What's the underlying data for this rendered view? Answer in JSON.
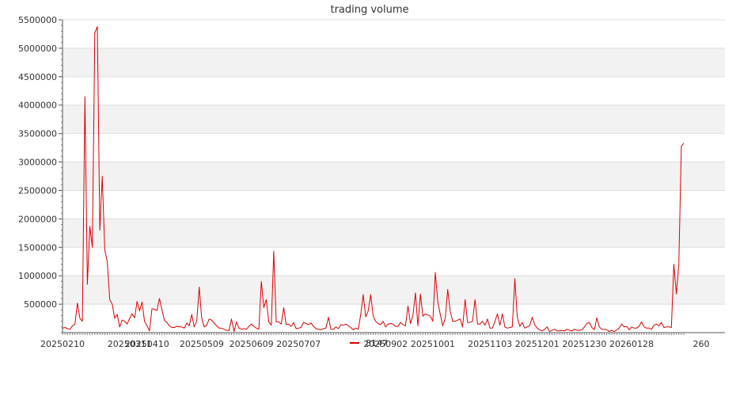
{
  "chart_data": {
    "type": "line",
    "title": "trading volume",
    "xlabel": "",
    "ylabel": "",
    "ylim": [
      0,
      5500000
    ],
    "y_ticks": [
      500000,
      1000000,
      1500000,
      2000000,
      2500000,
      3000000,
      3500000,
      4000000,
      4500000,
      5000000,
      5500000
    ],
    "x_tick_labels": [
      "20250210",
      "20250311",
      "20250410",
      "20250509",
      "20250609",
      "20250707",
      "20250902",
      "20251001",
      "20251103",
      "20251201",
      "20251230",
      "20260128",
      "260"
    ],
    "x_tick_indices": [
      0,
      27,
      34,
      56,
      76,
      95,
      130,
      149,
      172,
      191,
      210,
      229,
      257
    ],
    "grid": "horizontal bands",
    "legend_position": "bottom",
    "color": "#dd0000",
    "series": [
      {
        "name": "8147",
        "values": [
          80000,
          90000,
          70000,
          60000,
          120000,
          150000,
          520000,
          250000,
          200000,
          4150000,
          850000,
          1870000,
          1500000,
          5270000,
          5380000,
          1800000,
          2750000,
          1450000,
          1250000,
          580000,
          500000,
          250000,
          320000,
          100000,
          220000,
          200000,
          150000,
          250000,
          330000,
          260000,
          550000,
          380000,
          540000,
          200000,
          120000,
          30000,
          420000,
          410000,
          390000,
          600000,
          400000,
          220000,
          180000,
          120000,
          90000,
          90000,
          110000,
          100000,
          100000,
          80000,
          170000,
          120000,
          320000,
          100000,
          200000,
          800000,
          260000,
          100000,
          130000,
          240000,
          220000,
          170000,
          120000,
          80000,
          80000,
          60000,
          40000,
          40000,
          240000,
          20000,
          190000,
          80000,
          60000,
          70000,
          60000,
          110000,
          150000,
          110000,
          80000,
          60000,
          900000,
          440000,
          580000,
          190000,
          130000,
          1430000,
          190000,
          190000,
          150000,
          440000,
          140000,
          150000,
          110000,
          180000,
          70000,
          80000,
          90000,
          180000,
          160000,
          140000,
          170000,
          110000,
          70000,
          60000,
          50000,
          70000,
          80000,
          270000,
          60000,
          60000,
          100000,
          70000,
          140000,
          130000,
          150000,
          120000,
          90000,
          50000,
          80000,
          60000,
          320000,
          670000,
          280000,
          380000,
          670000,
          290000,
          200000,
          160000,
          140000,
          200000,
          100000,
          150000,
          160000,
          150000,
          110000,
          110000,
          180000,
          140000,
          120000,
          470000,
          160000,
          300000,
          700000,
          120000,
          680000,
          290000,
          330000,
          310000,
          290000,
          200000,
          1060000,
          550000,
          320000,
          120000,
          250000,
          760000,
          380000,
          200000,
          200000,
          220000,
          240000,
          100000,
          580000,
          180000,
          180000,
          200000,
          580000,
          150000,
          150000,
          200000,
          130000,
          240000,
          80000,
          80000,
          200000,
          330000,
          130000,
          330000,
          100000,
          80000,
          90000,
          100000,
          950000,
          270000,
          110000,
          180000,
          80000,
          100000,
          120000,
          270000,
          140000,
          80000,
          50000,
          30000,
          60000,
          100000,
          20000,
          40000,
          60000,
          30000,
          30000,
          40000,
          30000,
          60000,
          40000,
          30000,
          60000,
          40000,
          40000,
          50000,
          100000,
          160000,
          180000,
          90000,
          50000,
          260000,
          100000,
          60000,
          60000,
          50000,
          20000,
          40000,
          20000,
          50000,
          80000,
          150000,
          100000,
          110000,
          50000,
          100000,
          80000,
          80000,
          110000,
          190000,
          100000,
          80000,
          80000,
          60000,
          130000,
          150000,
          120000,
          180000,
          90000,
          100000,
          100000,
          90000,
          1200000,
          680000,
          1200000,
          3280000,
          3330000
        ]
      }
    ]
  }
}
